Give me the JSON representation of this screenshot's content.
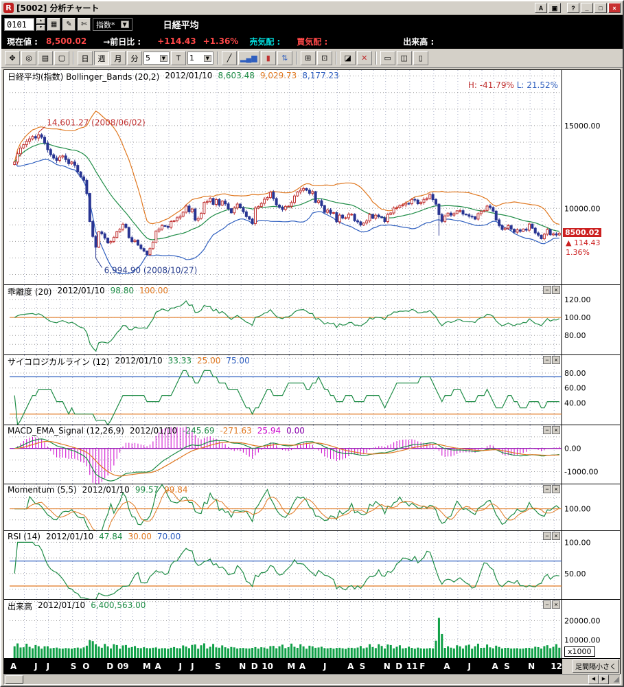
{
  "window": {
    "title": "[5002] 分析チャート",
    "icon_letter": "R",
    "buttons": [
      {
        "label": "A"
      },
      {
        "label": "▣"
      },
      {
        "label": "?"
      },
      {
        "label": "_"
      },
      {
        "label": "□"
      },
      {
        "label": "×"
      }
    ]
  },
  "quote_bar": {
    "code": "0101",
    "selector_label": "指数*",
    "symbol_name": "日経平均"
  },
  "price_bar": {
    "label_current": "現在値 :",
    "current": "8,500.02",
    "label_change": "→前日比 :",
    "change": "+114.43",
    "change_pct": "+1.36%",
    "label_ask": "売気配 :",
    "label_bid": "買気配 :",
    "label_volume": "出来高 :"
  },
  "toolbar": {
    "periods": [
      "日",
      "週",
      "月",
      "分"
    ],
    "active_period": "週",
    "minutes_value": "5",
    "t_label": "T",
    "bars_value": "1"
  },
  "icons": {
    "spin_up": "▲",
    "spin_down": "▼",
    "dropdown_arrow": "▼",
    "tool_list": "▦",
    "tool_edit": "✎",
    "tool_cut": "✄",
    "hand": "✥",
    "zoom": "◎",
    "page_copy": "▤",
    "page_new": "▢",
    "trendline": "╱",
    "bars": "▂▄▆",
    "candle": "▮",
    "compare": "⇅",
    "grid": "⊞",
    "grid2": "⊡",
    "eraser": "◪",
    "delete_x": "✕",
    "win1": "▭",
    "win2": "◫",
    "win3": "▯",
    "panel_min": "−",
    "panel_close": "×",
    "scroll_left": "◀",
    "scroll_right": "▶",
    "grip": "◢"
  },
  "panels": [
    {
      "title": "日経平均(指数) Bollinger_Bands (20,2)",
      "date": "2012/01/10",
      "values": [
        "8,603.48",
        "9,029.73",
        "8,177.23"
      ]
    },
    {
      "title": "乖離度 (20)",
      "date": "2012/01/10",
      "values": [
        "98.80",
        "100.00"
      ]
    },
    {
      "title": "サイコロジカルライン (12)",
      "date": "2012/01/10",
      "values": [
        "33.33",
        "25.00",
        "75.00"
      ]
    },
    {
      "title": "MACD_EMA_Signal (12,26,9)",
      "date": "2012/01/10",
      "values": [
        "-245.69",
        "-271.63",
        "25.94",
        "0.00"
      ]
    },
    {
      "title": "Momentum (5,5)",
      "date": "2012/01/10",
      "values": [
        "99.57",
        "99.84"
      ]
    },
    {
      "title": "RSI (14)",
      "date": "2012/01/10",
      "values": [
        "47.84",
        "30.00",
        "70.00"
      ]
    },
    {
      "title": "出来高",
      "date": "2012/01/10",
      "values": [
        "6,400,563.00"
      ]
    }
  ],
  "main_right": {
    "h_label": "H: -41.79%",
    "l_label": "L: 21.52%",
    "price": "8500.02",
    "arrow": "▲",
    "change": "114.43",
    "pct": "1.36%"
  },
  "footer": {
    "spacing_button": "足間隔小さく"
  },
  "colors": {
    "up_candle": "#c03030",
    "down_candle": "#283593",
    "line_green": "#1e8c46",
    "line_orange": "#e07820",
    "line_blue": "#2f5fbf",
    "hist_magenta": "#cc00cc",
    "zero_purple": "#8800aa",
    "volume_green": "#0f9f46",
    "tag_red": "#cc2020",
    "grid_dot": "#a8aec8",
    "grid_h": "#999999"
  },
  "chart_data": {
    "type": "candlestick",
    "period": "weekly",
    "title": "日経平均(指数) Bollinger_Bands (20,2)",
    "x_range": "2008/04 - 2012/01",
    "month_labels": [
      "A",
      "",
      "J",
      "J",
      "",
      "S",
      "O",
      "",
      "D",
      "09",
      "",
      "M",
      "A",
      "",
      "J",
      "J",
      "",
      "S",
      "",
      "N",
      "D",
      "10",
      "",
      "M",
      "A",
      "",
      "J",
      "",
      "A",
      "S",
      "",
      "N",
      "D",
      "11",
      "F",
      "",
      "A",
      "",
      "J",
      "",
      "A",
      "S",
      "",
      "N",
      "",
      "12"
    ],
    "weeks_per_month": 4,
    "closes": [
      12800,
      13300,
      13650,
      13850,
      14050,
      14200,
      14340,
      14250,
      14450,
      14300,
      13950,
      13550,
      13240,
      13040,
      12900,
      13100,
      13170,
      12950,
      12700,
      12800,
      12600,
      12200,
      11900,
      11700,
      10900,
      9200,
      8300,
      7650,
      8580,
      8460,
      8200,
      7910,
      8000,
      8240,
      8590,
      8740,
      9040,
      8840,
      8230,
      7990,
      8080,
      7780,
      7570,
      7420,
      7200,
      7570,
      7950,
      8630,
      8750,
      8960,
      8910,
      8850,
      9200,
      9260,
      9430,
      9520,
      9770,
      10140,
      9790,
      9960,
      9290,
      9400,
      9700,
      10360,
      10410,
      10600,
      10240,
      10530,
      10190,
      10440,
      10270,
      9980,
      9730,
      10020,
      10260,
      10030,
      9790,
      9500,
      9350,
      9080,
      10020,
      10110,
      10300,
      10550,
      10650,
      10980,
      10590,
      10200,
      10060,
      9930,
      10120,
      10130,
      10350,
      10750,
      10990,
      11090,
      11200,
      11100,
      10910,
      11010,
      10360,
      10460,
      10160,
      9760,
      9900,
      9700,
      9740,
      9190,
      9590,
      9410,
      9430,
      9640,
      9640,
      9250,
      9180,
      8990,
      9110,
      9240,
      9630,
      9400,
      9590,
      9500,
      9430,
      9200,
      9630,
      9720,
      10020,
      10040,
      10180,
      10210,
      10300,
      10280,
      10540,
      10500,
      10280,
      10360,
      10540,
      10600,
      10840,
      10530,
      10250,
      9620,
      9210,
      9540,
      9710,
      9590,
      9680,
      9850,
      9860,
      9650,
      9610,
      9520,
      9490,
      9350,
      9680,
      9820,
      9870,
      10140,
      10050,
      9830,
      9300,
      8960,
      8720,
      8800,
      8950,
      8740,
      8560,
      8700,
      8610,
      8750,
      8680,
      9050,
      8800,
      8510,
      8380,
      8160,
      8440,
      8720,
      8400,
      8460,
      8390,
      8500.02
    ],
    "overrides": {
      "high": {
        "8": 14601.27
      },
      "low": {
        "27": 6994.9,
        "141": 8350
      }
    },
    "annotations": [
      {
        "index": 8,
        "price": 14601.27,
        "text": "14,601.27 (2008/06/02)",
        "color": "#c03030",
        "dy": -8
      },
      {
        "index": 27,
        "price": 6994.9,
        "text": "6,994.90 (2008/10/27)",
        "color": "#2a3f8f",
        "dy": 14
      }
    ],
    "main": {
      "ylim": [
        5400,
        18360
      ],
      "ticks": [
        {
          "v": 15000,
          "label": "15000.00"
        },
        {
          "v": 10000,
          "label": "10000.00"
        }
      ],
      "boll_period": 20,
      "boll_mult": 2,
      "last_close": 8500.02
    },
    "kairi": {
      "period": 20,
      "ylim": [
        58,
        136
      ],
      "ref": 100,
      "ticks": [
        {
          "v": 120,
          "label": "120.00"
        },
        {
          "v": 100,
          "label": "100.00"
        },
        {
          "v": 80,
          "label": "80.00"
        }
      ]
    },
    "psych": {
      "period": 12,
      "ylim": [
        10,
        104
      ],
      "ref_high": 75,
      "ref_low": 25,
      "ticks": [
        {
          "v": 80,
          "label": "80.00"
        },
        {
          "v": 60,
          "label": "60.00"
        },
        {
          "v": 40,
          "label": "40.00"
        }
      ]
    },
    "macd": {
      "fast": 12,
      "slow": 26,
      "signal": 9,
      "ylim": [
        -1550,
        1000
      ],
      "ticks": [
        {
          "v": 0,
          "label": "0.00"
        },
        {
          "v": -1000,
          "label": "-1000.00"
        }
      ]
    },
    "momentum": {
      "period": 5,
      "smooth": 5,
      "ylim": [
        80,
        122
      ],
      "ref": 100,
      "ticks": [
        {
          "v": 100,
          "label": "100.00"
        }
      ]
    },
    "rsi": {
      "period": 14,
      "ylim": [
        8,
        118
      ],
      "ref_high": 70,
      "ref_low": 30,
      "ticks": [
        {
          "v": 100,
          "label": "100.00"
        },
        {
          "v": 50,
          "label": "50.00"
        }
      ]
    },
    "volume": {
      "ylim": [
        0,
        31000
      ],
      "unit_label": "x1000",
      "base": 5200,
      "wave": 2600,
      "ticks": [
        {
          "v": 20000,
          "label": "20000.00"
        },
        {
          "v": 10000,
          "label": "10000.00"
        }
      ],
      "overrides": {
        "25": 9800,
        "26": 9300,
        "140": 9500,
        "141": 21500,
        "142": 13000
      }
    }
  }
}
